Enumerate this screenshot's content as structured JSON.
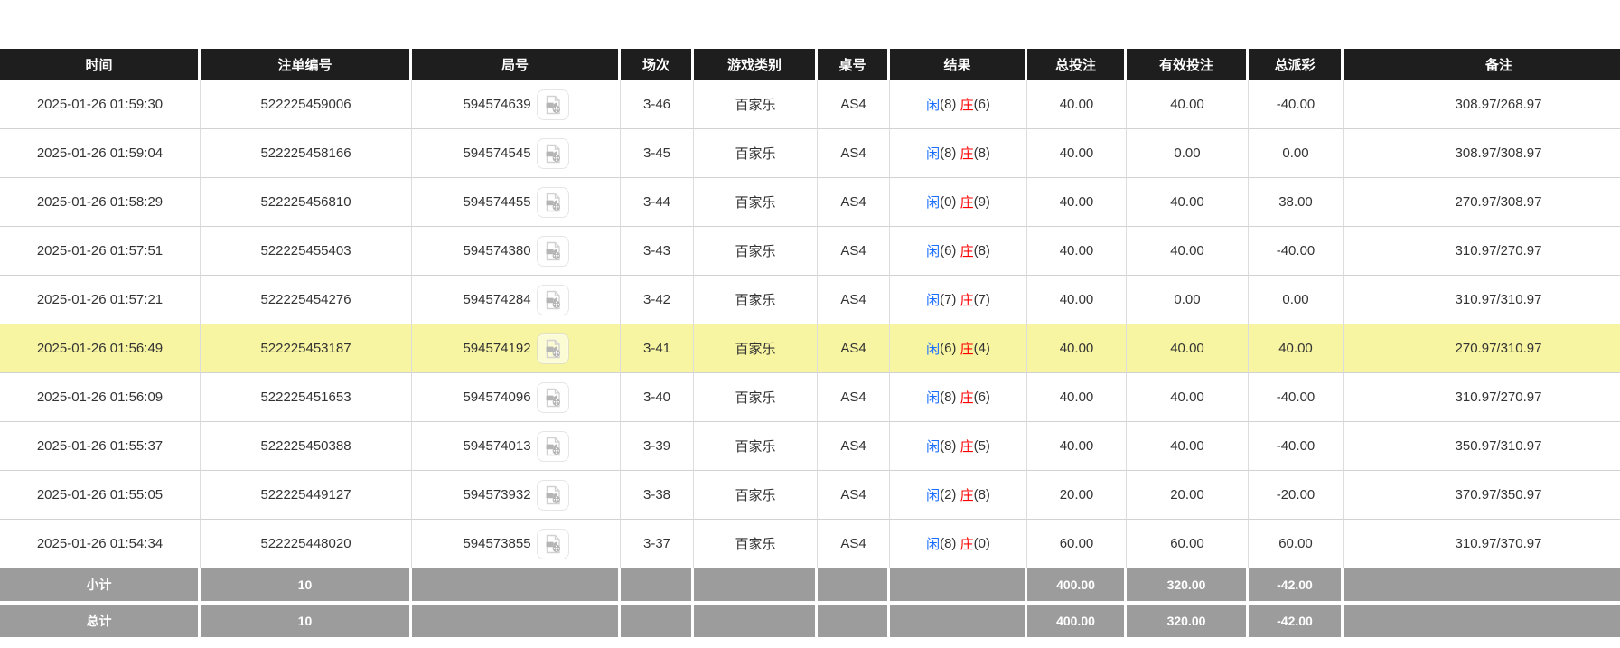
{
  "table": {
    "columns": [
      {
        "key": "time",
        "label": "时间"
      },
      {
        "key": "bet_id",
        "label": "注单编号"
      },
      {
        "key": "round_id",
        "label": "局号"
      },
      {
        "key": "session",
        "label": "场次"
      },
      {
        "key": "game_type",
        "label": "游戏类别"
      },
      {
        "key": "table_no",
        "label": "桌号"
      },
      {
        "key": "result",
        "label": "结果"
      },
      {
        "key": "total_bet",
        "label": "总投注"
      },
      {
        "key": "valid_bet",
        "label": "有效投注"
      },
      {
        "key": "total_payout",
        "label": "总派彩"
      },
      {
        "key": "remark",
        "label": "备注"
      }
    ],
    "result_labels": {
      "player": "闲",
      "banker": "庄"
    },
    "icons": {
      "round_video_icon": "film-camera-icon"
    },
    "rows": [
      {
        "time": "2025-01-26 01:59:30",
        "bet_id": "522225459006",
        "round_id": "594574639",
        "session": "3-46",
        "game_type": "百家乐",
        "table_no": "AS4",
        "player": "8",
        "banker": "6",
        "total_bet": "40.00",
        "valid_bet": "40.00",
        "total_payout": "-40.00",
        "remark": "308.97/268.97",
        "highlighted": false
      },
      {
        "time": "2025-01-26 01:59:04",
        "bet_id": "522225458166",
        "round_id": "594574545",
        "session": "3-45",
        "game_type": "百家乐",
        "table_no": "AS4",
        "player": "8",
        "banker": "8",
        "total_bet": "40.00",
        "valid_bet": "0.00",
        "total_payout": "0.00",
        "remark": "308.97/308.97",
        "highlighted": false
      },
      {
        "time": "2025-01-26 01:58:29",
        "bet_id": "522225456810",
        "round_id": "594574455",
        "session": "3-44",
        "game_type": "百家乐",
        "table_no": "AS4",
        "player": "0",
        "banker": "9",
        "total_bet": "40.00",
        "valid_bet": "40.00",
        "total_payout": "38.00",
        "remark": "270.97/308.97",
        "highlighted": false
      },
      {
        "time": "2025-01-26 01:57:51",
        "bet_id": "522225455403",
        "round_id": "594574380",
        "session": "3-43",
        "game_type": "百家乐",
        "table_no": "AS4",
        "player": "6",
        "banker": "8",
        "total_bet": "40.00",
        "valid_bet": "40.00",
        "total_payout": "-40.00",
        "remark": "310.97/270.97",
        "highlighted": false
      },
      {
        "time": "2025-01-26 01:57:21",
        "bet_id": "522225454276",
        "round_id": "594574284",
        "session": "3-42",
        "game_type": "百家乐",
        "table_no": "AS4",
        "player": "7",
        "banker": "7",
        "total_bet": "40.00",
        "valid_bet": "0.00",
        "total_payout": "0.00",
        "remark": "310.97/310.97",
        "highlighted": false
      },
      {
        "time": "2025-01-26 01:56:49",
        "bet_id": "522225453187",
        "round_id": "594574192",
        "session": "3-41",
        "game_type": "百家乐",
        "table_no": "AS4",
        "player": "6",
        "banker": "4",
        "total_bet": "40.00",
        "valid_bet": "40.00",
        "total_payout": "40.00",
        "remark": "270.97/310.97",
        "highlighted": true
      },
      {
        "time": "2025-01-26 01:56:09",
        "bet_id": "522225451653",
        "round_id": "594574096",
        "session": "3-40",
        "game_type": "百家乐",
        "table_no": "AS4",
        "player": "8",
        "banker": "6",
        "total_bet": "40.00",
        "valid_bet": "40.00",
        "total_payout": "-40.00",
        "remark": "310.97/270.97",
        "highlighted": false
      },
      {
        "time": "2025-01-26 01:55:37",
        "bet_id": "522225450388",
        "round_id": "594574013",
        "session": "3-39",
        "game_type": "百家乐",
        "table_no": "AS4",
        "player": "8",
        "banker": "5",
        "total_bet": "40.00",
        "valid_bet": "40.00",
        "total_payout": "-40.00",
        "remark": "350.97/310.97",
        "highlighted": false
      },
      {
        "time": "2025-01-26 01:55:05",
        "bet_id": "522225449127",
        "round_id": "594573932",
        "session": "3-38",
        "game_type": "百家乐",
        "table_no": "AS4",
        "player": "2",
        "banker": "8",
        "total_bet": "20.00",
        "valid_bet": "20.00",
        "total_payout": "-20.00",
        "remark": "370.97/350.97",
        "highlighted": false
      },
      {
        "time": "2025-01-26 01:54:34",
        "bet_id": "522225448020",
        "round_id": "594573855",
        "session": "3-37",
        "game_type": "百家乐",
        "table_no": "AS4",
        "player": "8",
        "banker": "0",
        "total_bet": "60.00",
        "valid_bet": "60.00",
        "total_payout": "60.00",
        "remark": "310.97/370.97",
        "highlighted": false
      }
    ],
    "summary_rows": [
      {
        "label": "小计",
        "count": "10",
        "total_bet": "400.00",
        "valid_bet": "320.00",
        "total_payout": "-42.00"
      },
      {
        "label": "总计",
        "count": "10",
        "total_bet": "400.00",
        "valid_bet": "320.00",
        "total_payout": "-42.00"
      }
    ],
    "colors": {
      "header_bg": "#1e1e1e",
      "summary_bg": "#9c9c9c",
      "highlight_row_bg": "#f7f5a1",
      "player_and_bet_blue": "#1a6eff",
      "banker_and_negative_red": "#fe0000",
      "data_text": "#333333"
    }
  }
}
